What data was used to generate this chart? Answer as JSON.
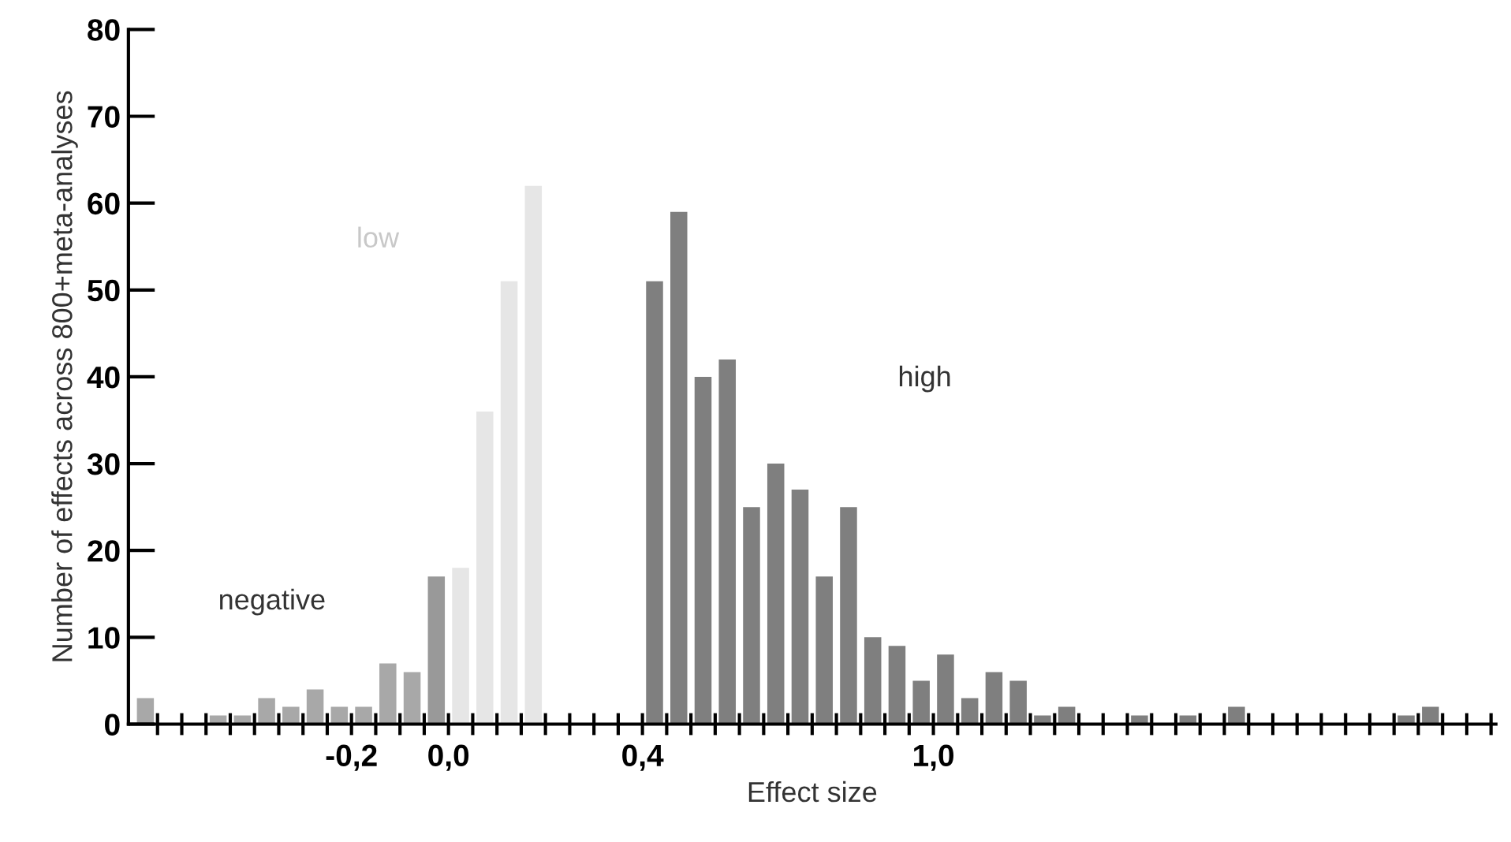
{
  "chart_data": {
    "type": "histogram",
    "xlabel": "Effect size",
    "ylabel": "Number of effects across 800+meta-analyses",
    "bins": [
      -0.65,
      -0.6,
      -0.55,
      -0.5,
      -0.45,
      -0.4,
      -0.35,
      -0.3,
      -0.25,
      -0.2,
      -0.15,
      -0.1,
      -0.05,
      0.0,
      0.05,
      0.1,
      0.15,
      0.2,
      0.25,
      0.3,
      0.35,
      0.4,
      0.45,
      0.5,
      0.55,
      0.6,
      0.65,
      0.7,
      0.75,
      0.8,
      0.85,
      0.9,
      0.95,
      1.0,
      1.05,
      1.1,
      1.15,
      1.2,
      1.25,
      1.3,
      1.35,
      1.4,
      1.45,
      1.5,
      1.55,
      1.6,
      1.65,
      1.7,
      1.75,
      1.8,
      1.85,
      1.9,
      1.95,
      2.0,
      2.05,
      2.1,
      2.15
    ],
    "values": [
      3,
      0,
      0,
      1,
      1,
      3,
      2,
      4,
      2,
      2,
      7,
      6,
      17,
      18,
      36,
      51,
      62,
      0,
      0,
      0,
      0,
      51,
      59,
      40,
      42,
      25,
      30,
      27,
      17,
      25,
      10,
      9,
      5,
      8,
      3,
      6,
      5,
      1,
      2,
      0,
      0,
      1,
      0,
      1,
      0,
      2,
      0,
      0,
      0,
      0,
      0,
      0,
      1,
      2,
      0,
      0
    ],
    "colors": [
      "#a8a8a8",
      "#a8a8a8",
      "#a8a8a8",
      "#a8a8a8",
      "#a8a8a8",
      "#a8a8a8",
      "#a8a8a8",
      "#a8a8a8",
      "#a8a8a8",
      "#a8a8a8",
      "#a8a8a8",
      "#a8a8a8",
      "#999999",
      "#e6e6e6",
      "#e6e6e6",
      "#e6e6e6",
      "#e6e6e6",
      "#e6e6e6",
      "#e6e6e6",
      "#e6e6e6",
      "#e6e6e6",
      "#7f7f7f",
      "#7f7f7f",
      "#7f7f7f",
      "#7f7f7f",
      "#7f7f7f",
      "#7f7f7f",
      "#7f7f7f",
      "#7f7f7f",
      "#7f7f7f",
      "#7f7f7f",
      "#7f7f7f",
      "#7f7f7f",
      "#7f7f7f",
      "#7f7f7f",
      "#7f7f7f",
      "#7f7f7f",
      "#7f7f7f",
      "#7f7f7f",
      "#7f7f7f",
      "#7f7f7f",
      "#7f7f7f",
      "#7f7f7f",
      "#7f7f7f",
      "#7f7f7f",
      "#7f7f7f",
      "#7f7f7f",
      "#7f7f7f",
      "#7f7f7f",
      "#7f7f7f",
      "#7f7f7f",
      "#7f7f7f",
      "#7f7f7f",
      "#7f7f7f",
      "#7f7f7f",
      "#7f7f7f"
    ],
    "xlim": [
      -0.66,
      2.16
    ],
    "ylim": [
      0,
      80
    ],
    "yticks": [
      0,
      10,
      20,
      30,
      40,
      50,
      60,
      70,
      80
    ],
    "xticks": [
      {
        "value": -0.6,
        "label": null
      },
      {
        "value": -0.55,
        "label": null
      },
      {
        "value": -0.5,
        "label": null
      },
      {
        "value": -0.45,
        "label": null
      },
      {
        "value": -0.4,
        "label": null
      },
      {
        "value": -0.35,
        "label": null
      },
      {
        "value": -0.3,
        "label": null
      },
      {
        "value": -0.25,
        "label": null
      },
      {
        "value": -0.2,
        "label": "-0,2"
      },
      {
        "value": -0.15,
        "label": null
      },
      {
        "value": -0.1,
        "label": null
      },
      {
        "value": -0.05,
        "label": null
      },
      {
        "value": 0.0,
        "label": "0,0"
      },
      {
        "value": 0.05,
        "label": null
      },
      {
        "value": 0.1,
        "label": null
      },
      {
        "value": 0.15,
        "label": null
      },
      {
        "value": 0.2,
        "label": null
      },
      {
        "value": 0.25,
        "label": null
      },
      {
        "value": 0.3,
        "label": null
      },
      {
        "value": 0.35,
        "label": null
      },
      {
        "value": 0.4,
        "label": "0,4"
      },
      {
        "value": 0.45,
        "label": null
      },
      {
        "value": 0.5,
        "label": null
      },
      {
        "value": 0.55,
        "label": null
      },
      {
        "value": 0.6,
        "label": null
      },
      {
        "value": 0.65,
        "label": null
      },
      {
        "value": 0.7,
        "label": null
      },
      {
        "value": 0.75,
        "label": null
      },
      {
        "value": 0.8,
        "label": null
      },
      {
        "value": 0.85,
        "label": null
      },
      {
        "value": 0.9,
        "label": null
      },
      {
        "value": 0.95,
        "label": null
      },
      {
        "value": 1.0,
        "label": "1,0"
      },
      {
        "value": 1.05,
        "label": null
      },
      {
        "value": 1.1,
        "label": null
      },
      {
        "value": 1.15,
        "label": null
      },
      {
        "value": 1.2,
        "label": null
      },
      {
        "value": 1.25,
        "label": null
      },
      {
        "value": 1.3,
        "label": null
      },
      {
        "value": 1.35,
        "label": null
      },
      {
        "value": 1.4,
        "label": null
      },
      {
        "value": 1.45,
        "label": null
      },
      {
        "value": 1.5,
        "label": null
      },
      {
        "value": 1.55,
        "label": null
      },
      {
        "value": 1.6,
        "label": null
      },
      {
        "value": 1.65,
        "label": null
      },
      {
        "value": 1.7,
        "label": null
      },
      {
        "value": 1.75,
        "label": null
      },
      {
        "value": 1.8,
        "label": null
      },
      {
        "value": 1.85,
        "label": null
      },
      {
        "value": 1.9,
        "label": null
      },
      {
        "value": 1.95,
        "label": null
      },
      {
        "value": 2.0,
        "label": null
      },
      {
        "value": 2.05,
        "label": null
      },
      {
        "value": 2.1,
        "label": null
      },
      {
        "value": 2.15,
        "label": null
      }
    ],
    "annotations": [
      "negative",
      "low",
      "high"
    ],
    "grid": false,
    "legend": false
  }
}
